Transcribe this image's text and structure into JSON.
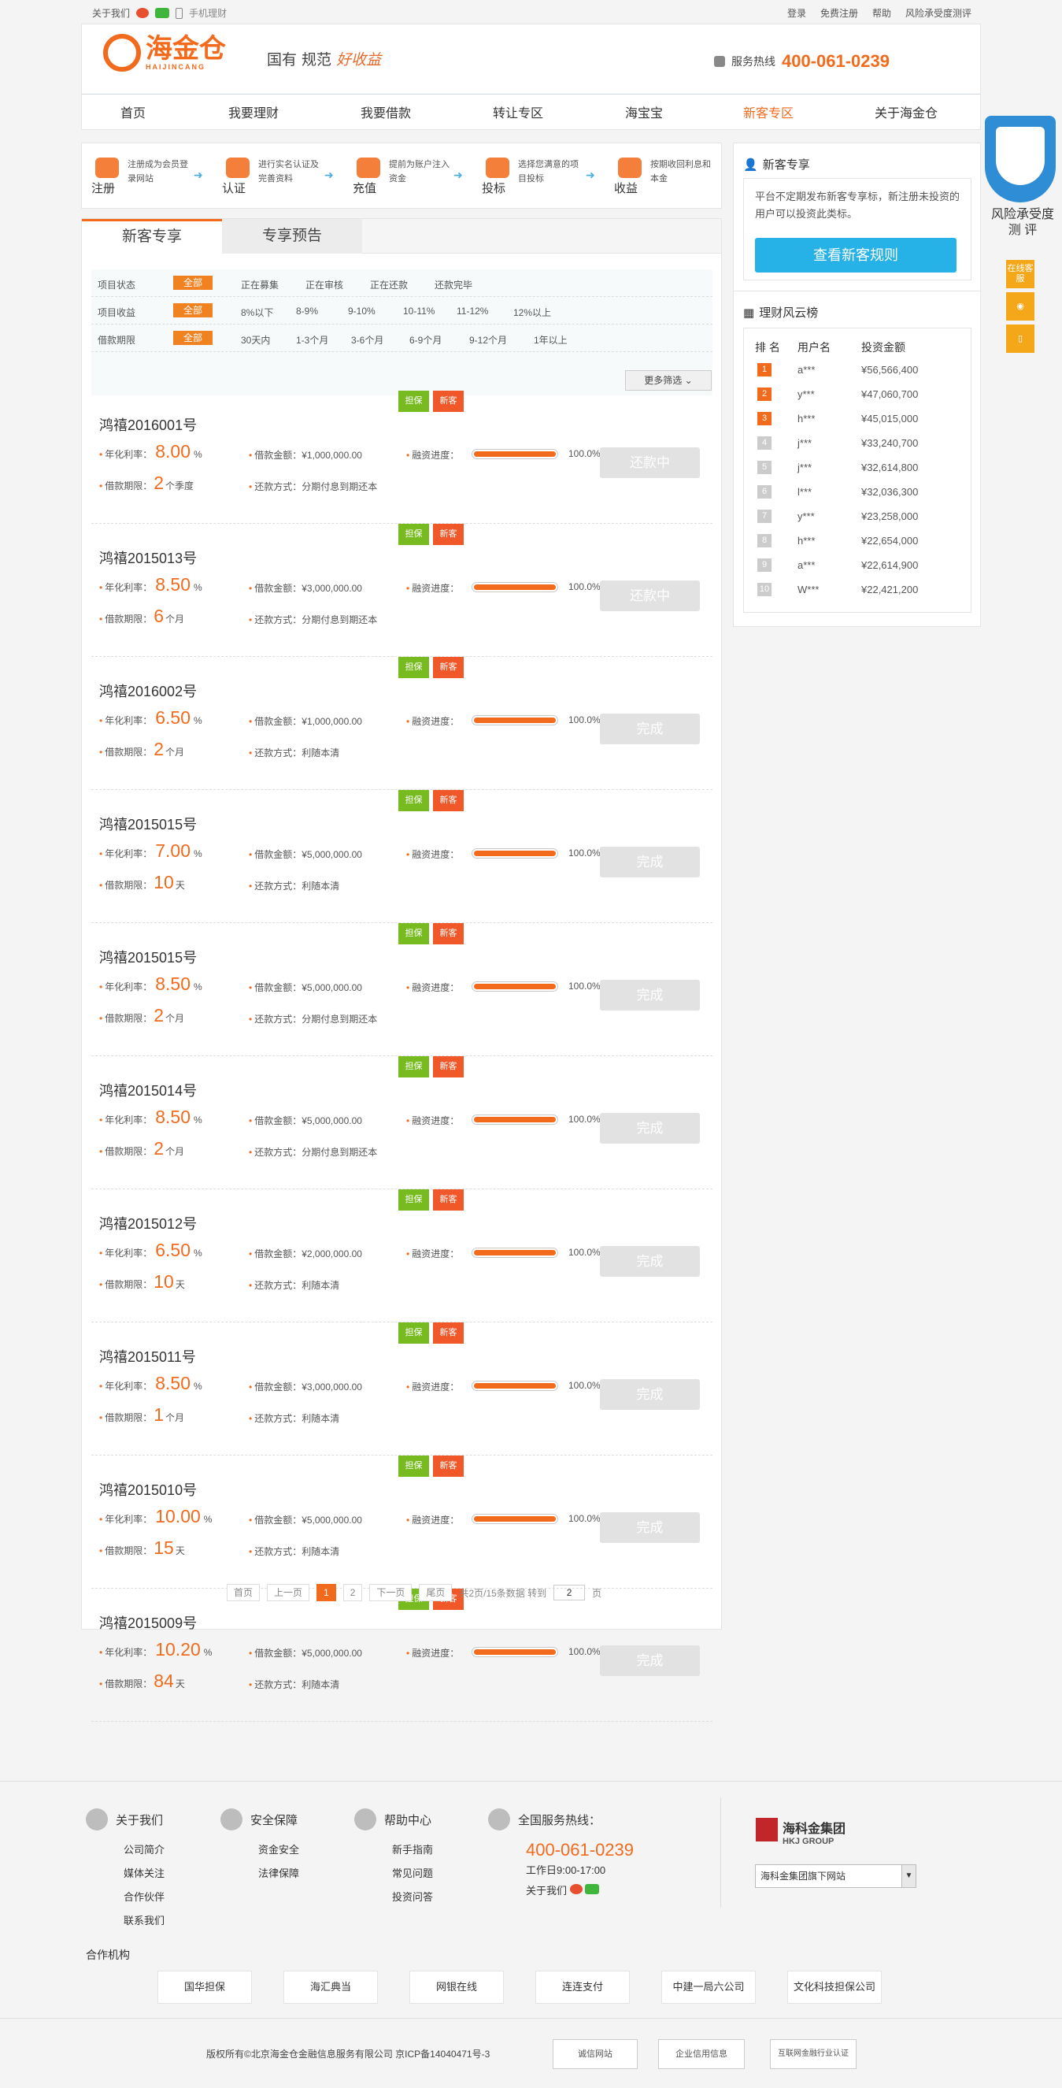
{
  "topbar": {
    "follow": "关于我们",
    "mobile": "手机理财",
    "login": "登录",
    "register": "免费注册",
    "help": "帮助",
    "risk": "风险承受度测评"
  },
  "header": {
    "logo": "海金仓",
    "logo_sub": "HAIJINCANG",
    "slogan": "国有 规范",
    "slogan_em": "好收益",
    "hotline_label": "服务热线",
    "hotline": "400-061-0239"
  },
  "nav": [
    "首页",
    "我要理财",
    "我要借款",
    "转让专区",
    "海宝宝",
    "新客专区",
    "关于海金仓"
  ],
  "steps": [
    {
      "title": "注册",
      "desc": "注册成为会员登录网站"
    },
    {
      "title": "认证",
      "desc": "进行实名认证及完善资料"
    },
    {
      "title": "充值",
      "desc": "提前为账户注入资金"
    },
    {
      "title": "投标",
      "desc": "选择您满意的项目投标"
    },
    {
      "title": "收益",
      "desc": "按期收回利息和本金"
    }
  ],
  "tabs": [
    "新客专享",
    "专享预告"
  ],
  "filters": [
    {
      "label": "项目状态",
      "all": "全部",
      "opts": [
        "正在募集",
        "正在审核",
        "正在还款",
        "还款完毕"
      ]
    },
    {
      "label": "项目收益",
      "all": "全部",
      "opts": [
        "8%以下",
        "8-9%",
        "9-10%",
        "10-11%",
        "11-12%",
        "12%以上"
      ]
    },
    {
      "label": "借款期限",
      "all": "全部",
      "opts": [
        "30天内",
        "1-3个月",
        "3-6个月",
        "6-9个月",
        "9-12个月",
        "1年以上"
      ]
    }
  ],
  "more_filter": "更多筛选",
  "labels": {
    "guarantee": "担保",
    "newbie": "新客",
    "rate": "年化利率：",
    "period": "借款期限：",
    "amount": "借款金额：",
    "progress": "融资进度：",
    "repay": "还款方式："
  },
  "loans": [
    {
      "name": "鸿禧2016001号",
      "rate": "8.00",
      "rate_unit": "%",
      "period": "2",
      "period_unit": "个季度",
      "amount": "¥1,000,000.00",
      "repay": "分期付息到期还本",
      "progress": "100.0%",
      "status": "还款中"
    },
    {
      "name": "鸿禧2015013号",
      "rate": "8.50",
      "rate_unit": "%",
      "period": "6",
      "period_unit": "个月",
      "amount": "¥3,000,000.00",
      "repay": "分期付息到期还本",
      "progress": "100.0%",
      "status": "还款中"
    },
    {
      "name": "鸿禧2016002号",
      "rate": "6.50",
      "rate_unit": "%",
      "period": "2",
      "period_unit": "个月",
      "amount": "¥1,000,000.00",
      "repay": "利随本清",
      "progress": "100.0%",
      "status": "完成"
    },
    {
      "name": "鸿禧2015015号",
      "rate": "7.00",
      "rate_unit": "%",
      "period": "10",
      "period_unit": "天",
      "amount": "¥5,000,000.00",
      "repay": "利随本清",
      "progress": "100.0%",
      "status": "完成"
    },
    {
      "name": "鸿禧2015015号",
      "rate": "8.50",
      "rate_unit": "%",
      "period": "2",
      "period_unit": "个月",
      "amount": "¥5,000,000.00",
      "repay": "分期付息到期还本",
      "progress": "100.0%",
      "status": "完成"
    },
    {
      "name": "鸿禧2015014号",
      "rate": "8.50",
      "rate_unit": "%",
      "period": "2",
      "period_unit": "个月",
      "amount": "¥5,000,000.00",
      "repay": "分期付息到期还本",
      "progress": "100.0%",
      "status": "完成"
    },
    {
      "name": "鸿禧2015012号",
      "rate": "6.50",
      "rate_unit": "%",
      "period": "10",
      "period_unit": "天",
      "amount": "¥2,000,000.00",
      "repay": "利随本清",
      "progress": "100.0%",
      "status": "完成"
    },
    {
      "name": "鸿禧2015011号",
      "rate": "8.50",
      "rate_unit": "%",
      "period": "1",
      "period_unit": "个月",
      "amount": "¥3,000,000.00",
      "repay": "利随本清",
      "progress": "100.0%",
      "status": "完成"
    },
    {
      "name": "鸿禧2015010号",
      "rate": "10.00",
      "rate_unit": "%",
      "period": "15",
      "period_unit": "天",
      "amount": "¥5,000,000.00",
      "repay": "利随本清",
      "progress": "100.0%",
      "status": "完成"
    },
    {
      "name": "鸿禧2015009号",
      "rate": "10.20",
      "rate_unit": "%",
      "period": "84",
      "period_unit": "天",
      "amount": "¥5,000,000.00",
      "repay": "利随本清",
      "progress": "100.0%",
      "status": "完成"
    }
  ],
  "pager": {
    "first": "首页",
    "prev": "上一页",
    "p1": "1",
    "p2": "2",
    "next": "下一页",
    "last": "尾页",
    "info": "共2页/15条数据 转到",
    "input": "2",
    "unit": "页"
  },
  "side": {
    "title": "新客专享",
    "desc": "平台不定期发布新客专享标，新注册未投资的用户可以投资此类标。",
    "btn": "查看新客规则"
  },
  "rank": {
    "title": "理财风云榜",
    "h_rank": "排 名",
    "h_user": "用户名",
    "h_amount": "投资金额",
    "rows": [
      [
        "1",
        "a***",
        "¥56,566,400"
      ],
      [
        "2",
        "y***",
        "¥47,060,700"
      ],
      [
        "3",
        "h***",
        "¥45,015,000"
      ],
      [
        "4",
        "j***",
        "¥33,240,700"
      ],
      [
        "5",
        "j***",
        "¥32,614,800"
      ],
      [
        "6",
        "l***",
        "¥32,036,300"
      ],
      [
        "7",
        "y***",
        "¥23,258,000"
      ],
      [
        "8",
        "h***",
        "¥22,654,000"
      ],
      [
        "9",
        "a***",
        "¥22,614,900"
      ],
      [
        "10",
        "W***",
        "¥22,421,200"
      ]
    ]
  },
  "float": {
    "title1": "风险承受度",
    "title2": "测 评",
    "online": "在线客服"
  },
  "footer": {
    "about": {
      "title": "关于我们",
      "items": [
        "公司简介",
        "媒体关注",
        "合作伙伴",
        "联系我们"
      ]
    },
    "safe": {
      "title": "安全保障",
      "items": [
        "资金安全",
        "法律保障"
      ]
    },
    "help": {
      "title": "帮助中心",
      "items": [
        "新手指南",
        "常见问题",
        "投资问答"
      ]
    },
    "service": {
      "title": "全国服务热线：",
      "num": "400-061-0239",
      "hours": "工作日9:00-17:00",
      "follow": "关于我们"
    },
    "group": "海科金集团",
    "group_en": "HKJ GROUP",
    "select": "海科金集团旗下网站",
    "partners_title": "合作机构",
    "partners": [
      "国华担保",
      "海汇典当",
      "网银在线",
      "连连支付",
      "中建一局六公司",
      "文化科技担保公司"
    ],
    "copyright": "版权所有©北京海金仓金融信息服务有限公司 京ICP备14040471号-3",
    "badges": [
      "诚信网站",
      "企业信用信息",
      "互联网金融行业认证"
    ]
  }
}
